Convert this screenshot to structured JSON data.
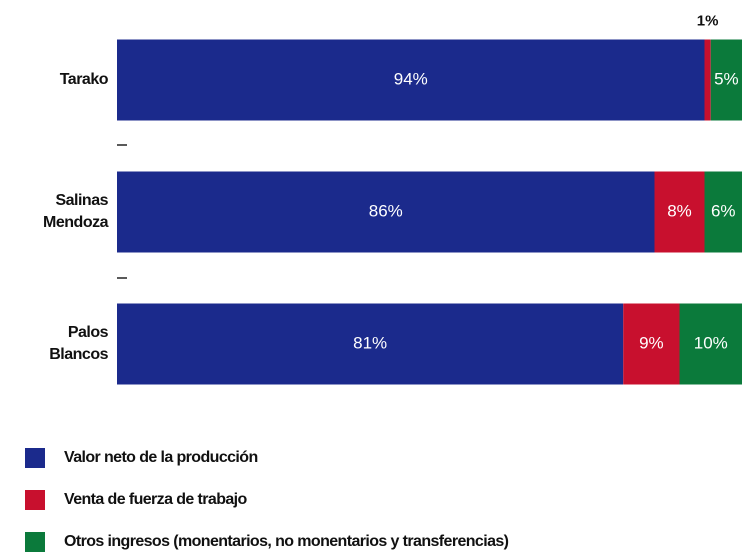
{
  "chart_data": {
    "type": "stacked-bar-horizontal",
    "categories": [
      "Tarako",
      "Salinas Mendoza",
      "Palos Blancos"
    ],
    "xlim": [
      0,
      100
    ],
    "series": [
      {
        "name": "Valor neto de la producción",
        "color": "#1b2a8c",
        "values": [
          94,
          86,
          81
        ],
        "value_labels": [
          "94%",
          "86%",
          "81%"
        ]
      },
      {
        "name": "Venta de fuerza de trabajo",
        "color": "#c8102e",
        "values": [
          1,
          8,
          9
        ],
        "value_labels": [
          "1%",
          "8%",
          "9%"
        ]
      },
      {
        "name": "Otros ingresos (monentarios, no monentarios y transferencias)",
        "color": "#0b7a3b",
        "values": [
          5,
          6,
          10
        ],
        "value_labels": [
          "5%",
          "6%",
          "10%"
        ]
      }
    ]
  }
}
